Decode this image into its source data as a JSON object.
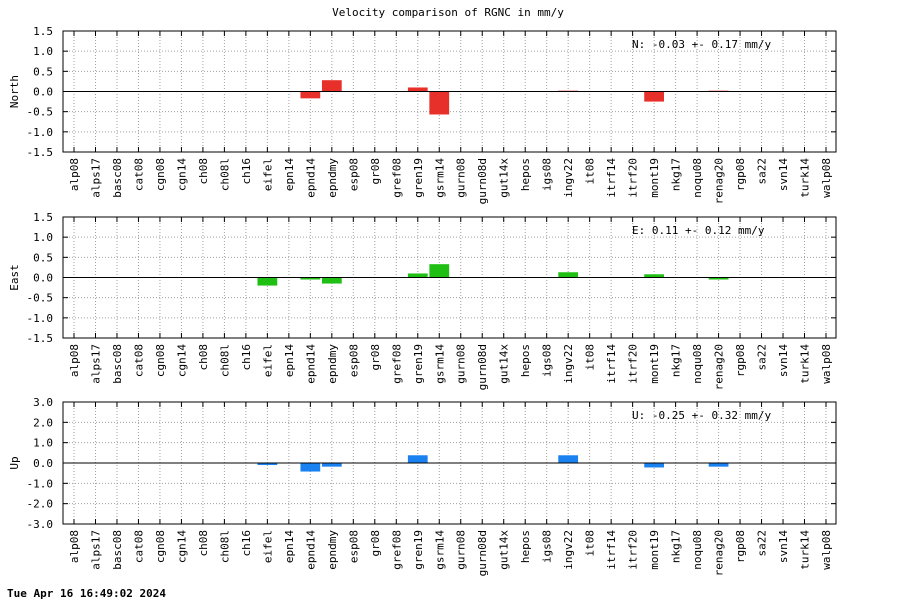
{
  "footer_timestamp": "Tue Apr 16 16:49:02 2024",
  "chart_data": {
    "type": "bar",
    "title": "Velocity comparison of RGNC in mm/y",
    "categories": [
      "alp08",
      "alps17",
      "basc08",
      "cat08",
      "cgn08",
      "cgn14",
      "ch08",
      "ch08l",
      "ch16",
      "eifel",
      "epn14",
      "epnd14",
      "epndmy",
      "esp08",
      "gr08",
      "gref08",
      "gren19",
      "gsrm14",
      "gurn08",
      "gurn08d",
      "gut14x",
      "hepos",
      "igs08",
      "ingv22",
      "it08",
      "itrf14",
      "itrf20",
      "mont19",
      "nkg17",
      "noqu08",
      "renag20",
      "rgp08",
      "sa22",
      "svn14",
      "turk14",
      "walp08"
    ],
    "grid": true,
    "panels": [
      {
        "name": "North",
        "ylabel": "North",
        "ylim": [
          -1.5,
          1.5
        ],
        "yticks": [
          -1.5,
          -1.0,
          -0.5,
          0.0,
          0.5,
          1.0,
          1.5
        ],
        "ytick_labels": [
          "-1.5",
          "-1.0",
          "-0.5",
          "0.0",
          "0.5",
          "1.0",
          "1.5"
        ],
        "color": "#e8302a",
        "summary": "N:  -0.03 +-  0.17 mm/y",
        "values": [
          0,
          0,
          0,
          0,
          0,
          0,
          0,
          0,
          0,
          0,
          0,
          -0.17,
          0.28,
          0,
          0,
          0,
          0.1,
          -0.57,
          0,
          0,
          0,
          0,
          0,
          0.02,
          0,
          0,
          0,
          -0.25,
          0,
          0,
          0.02,
          0,
          0,
          0,
          0,
          0
        ]
      },
      {
        "name": "East",
        "ylabel": "East",
        "ylim": [
          -1.5,
          1.5
        ],
        "yticks": [
          -1.5,
          -1.0,
          -0.5,
          0.0,
          0.5,
          1.0,
          1.5
        ],
        "ytick_labels": [
          "-1.5",
          "-1.0",
          "-0.5",
          "0.0",
          "0.5",
          "1.0",
          "1.5"
        ],
        "color": "#1fbf14",
        "summary": "E:   0.11 +-  0.12 mm/y",
        "values": [
          0,
          0,
          0,
          0,
          0,
          0,
          0,
          0,
          0,
          -0.2,
          0,
          -0.05,
          -0.15,
          0,
          0,
          0,
          0.1,
          0.33,
          0,
          0,
          0,
          0,
          0,
          0.13,
          0,
          0,
          0,
          0.08,
          0,
          0,
          -0.05,
          0,
          0,
          0,
          0,
          0
        ]
      },
      {
        "name": "Up",
        "ylabel": "Up",
        "ylim": [
          -3.0,
          3.0
        ],
        "yticks": [
          -3.0,
          -2.0,
          -1.0,
          0.0,
          1.0,
          2.0,
          3.0
        ],
        "ytick_labels": [
          "-3.0",
          "-2.0",
          "-1.0",
          "0.0",
          "1.0",
          "2.0",
          "3.0"
        ],
        "color": "#1a82f0",
        "summary": "U:  -0.25 +-  0.32 mm/y",
        "values": [
          0,
          0,
          0,
          0,
          0,
          0,
          0,
          0,
          0,
          -0.1,
          0,
          -0.42,
          -0.18,
          0,
          0,
          0,
          0.38,
          0,
          0,
          0,
          0,
          0,
          0,
          0.38,
          0,
          0,
          0,
          -0.22,
          0,
          0,
          -0.18,
          0,
          0,
          0,
          0,
          0
        ]
      }
    ]
  }
}
